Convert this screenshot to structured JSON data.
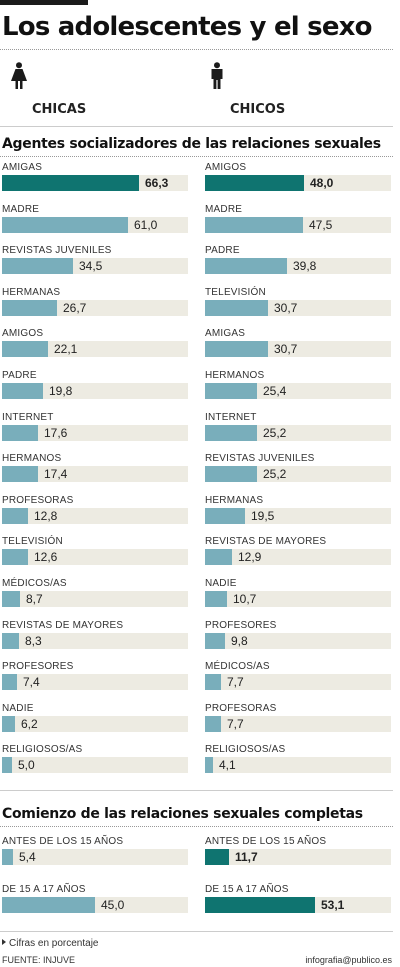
{
  "header": {
    "title": "Los adolescentes y el sexo",
    "girls_label": "CHICAS",
    "boys_label": "CHICOS"
  },
  "colors": {
    "highlight_bar": "#0f7470",
    "regular_bar": "#79aebb",
    "track": "#edebe2"
  },
  "icons": {
    "girls": "female-figure-icon",
    "boys": "male-figure-icon"
  },
  "footer": {
    "note": "Cifras en porcentaje",
    "source": "FUENTE: INJUVE",
    "credit": "infografia@publico.es"
  },
  "chart_data": [
    {
      "type": "bar",
      "title": "Agentes socializadores de las relaciones sexuales",
      "group": "CHICAS",
      "orientation": "horizontal",
      "unit": "%",
      "categories": [
        "AMIGAS",
        "MADRE",
        "REVISTAS JUVENILES",
        "HERMANAS",
        "AMIGOS",
        "PADRE",
        "INTERNET",
        "HERMANOS",
        "PROFESORAS",
        "TELEVISIÓN",
        "MÉDICOS/AS",
        "REVISTAS DE MAYORES",
        "PROFESORES",
        "NADIE",
        "RELIGIOSOS/AS"
      ],
      "values": [
        66.3,
        61.0,
        34.5,
        26.7,
        22.1,
        19.8,
        17.6,
        17.4,
        12.8,
        12.6,
        8.7,
        8.3,
        7.4,
        6.2,
        5.0
      ],
      "value_labels": [
        "66,3",
        "61,0",
        "34,5",
        "26,7",
        "22,1",
        "19,8",
        "17,6",
        "17,4",
        "12,8",
        "12,6",
        "8,7",
        "8,3",
        "7,4",
        "6,2",
        "5,0"
      ],
      "highlight": [
        true,
        false,
        false,
        false,
        false,
        false,
        false,
        false,
        false,
        false,
        false,
        false,
        false,
        false,
        false
      ],
      "xlim": [
        0,
        100
      ]
    },
    {
      "type": "bar",
      "title": "Agentes socializadores de las relaciones sexuales",
      "group": "CHICOS",
      "orientation": "horizontal",
      "unit": "%",
      "categories": [
        "AMIGOS",
        "MADRE",
        "PADRE",
        "TELEVISIÓN",
        "AMIGAS",
        "HERMANOS",
        "INTERNET",
        "REVISTAS JUVENILES",
        "HERMANAS",
        "REVISTAS DE MAYORES",
        "NADIE",
        "PROFESORES",
        "MÉDICOS/AS",
        "PROFESORAS",
        "RELIGIOSOS/AS"
      ],
      "values": [
        48.0,
        47.5,
        39.8,
        30.7,
        30.7,
        25.4,
        25.2,
        25.2,
        19.5,
        12.9,
        10.7,
        9.8,
        7.7,
        7.7,
        4.1
      ],
      "value_labels": [
        "48,0",
        "47,5",
        "39,8",
        "30,7",
        "30,7",
        "25,4",
        "25,2",
        "25,2",
        "19,5",
        "12,9",
        "10,7",
        "9,8",
        "7,7",
        "7,7",
        "4,1"
      ],
      "highlight": [
        true,
        false,
        false,
        false,
        false,
        false,
        false,
        false,
        false,
        false,
        false,
        false,
        false,
        false,
        false
      ],
      "xlim": [
        0,
        100
      ]
    },
    {
      "type": "bar",
      "title": "Comienzo de las relaciones sexuales completas",
      "group": "CHICAS",
      "orientation": "horizontal",
      "unit": "%",
      "categories": [
        "ANTES DE LOS 15 AÑOS",
        "DE 15 A 17 AÑOS"
      ],
      "values": [
        5.4,
        45.0
      ],
      "value_labels": [
        "5,4",
        "45,0"
      ],
      "highlight": [
        false,
        false
      ],
      "xlim": [
        0,
        100
      ]
    },
    {
      "type": "bar",
      "title": "Comienzo de las relaciones sexuales completas",
      "group": "CHICOS",
      "orientation": "horizontal",
      "unit": "%",
      "categories": [
        "ANTES DE LOS 15 AÑOS",
        "DE 15 A 17 AÑOS"
      ],
      "values": [
        11.7,
        53.1
      ],
      "value_labels": [
        "11,7",
        "53,1"
      ],
      "highlight": [
        true,
        true
      ],
      "xlim": [
        0,
        100
      ]
    }
  ]
}
